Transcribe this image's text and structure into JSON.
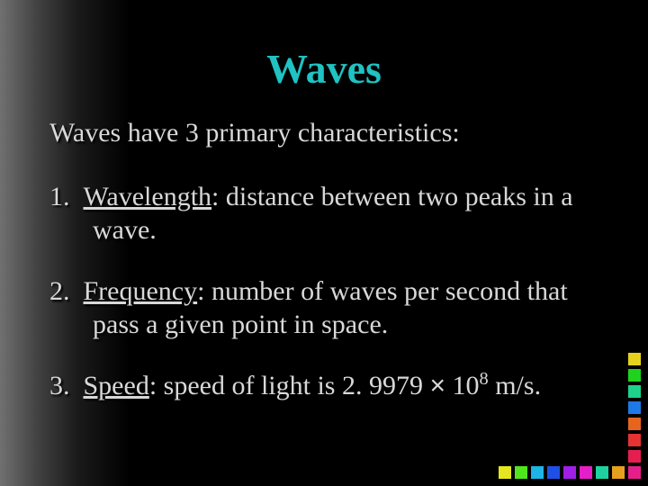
{
  "title": "Waves",
  "subtitle": "Waves have 3 primary characteristics:",
  "items": [
    {
      "num": "1.",
      "term": "Wavelength",
      "rest": ":  distance between two peaks in a wave."
    },
    {
      "num": "2.",
      "term": "Frequency",
      "rest": ":  number of waves per second that pass a given point in space."
    },
    {
      "num": "3.",
      "term": "Speed",
      "rest_pre": ":  speed of light is 2. 9979 ",
      "mult": "×",
      "rest_mid": " 10",
      "sup": "8",
      "rest_post": " m/s."
    }
  ],
  "square_colors_right": [
    "#e61e8c",
    "#e61e50",
    "#e63232",
    "#e6641e",
    "#1e78e6",
    "#1ed28c",
    "#1ed21e",
    "#e6d21e"
  ],
  "square_colors_bottom": [
    "#e6a01e",
    "#1ed2a0",
    "#e61ec8",
    "#a01ee6",
    "#1e50e6",
    "#1eb4e6",
    "#50e61e",
    "#e6e61e"
  ],
  "colors": {
    "title": "#20c2c2",
    "text": "#d8d8d8",
    "shadow": "#000000"
  }
}
